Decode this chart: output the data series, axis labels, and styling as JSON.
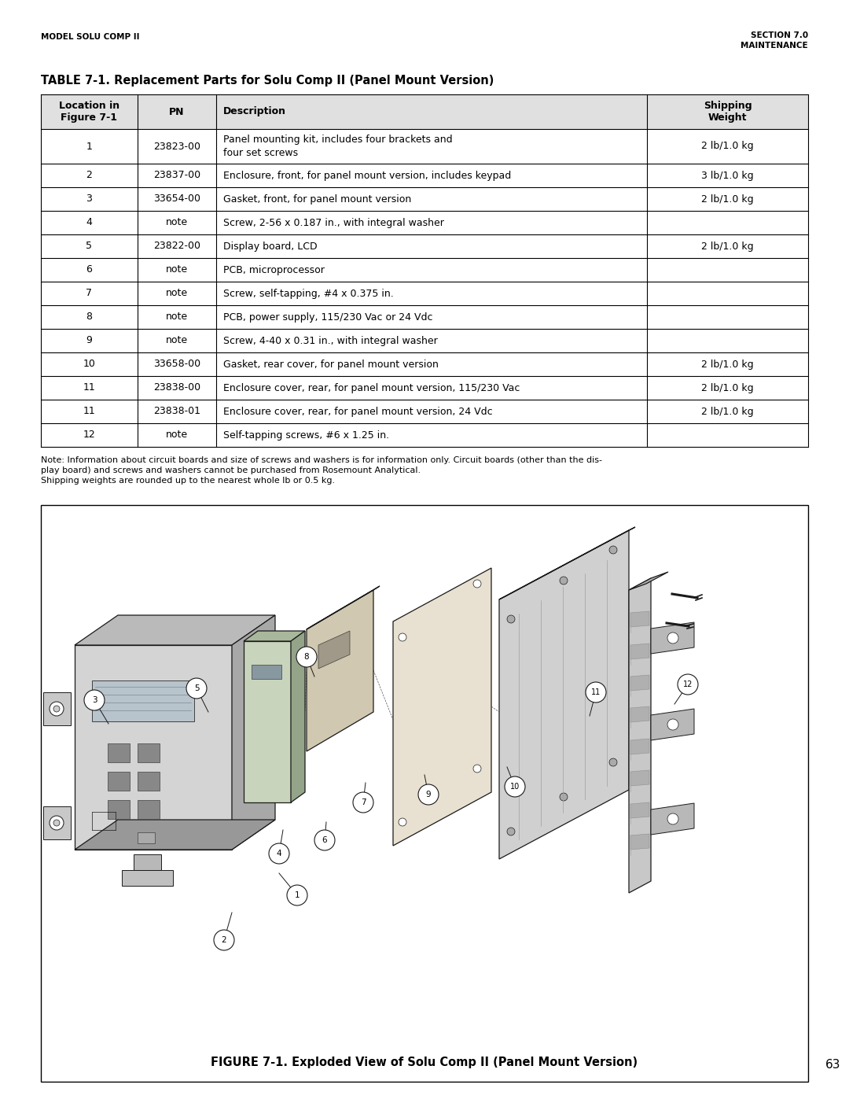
{
  "page_bg": "#ffffff",
  "header_left": "MODEL SOLU COMP II",
  "header_right_line1": "SECTION 7.0",
  "header_right_line2": "MAINTENANCE",
  "table_title": "TABLE 7-1. Replacement Parts for Solu Comp II (Panel Mount Version)",
  "col_headers": [
    "Location in\nFigure 7-1",
    "PN",
    "Description",
    "Shipping\nWeight"
  ],
  "rows": [
    [
      "1",
      "23823-00",
      "Panel mounting kit, includes four brackets and\nfour set screws",
      "2 lb/1.0 kg"
    ],
    [
      "2",
      "23837-00",
      "Enclosure, front, for panel mount version, includes keypad",
      "3 lb/1.0 kg"
    ],
    [
      "3",
      "33654-00",
      "Gasket, front, for panel mount version",
      "2 lb/1.0 kg"
    ],
    [
      "4",
      "note",
      "Screw, 2-56 x 0.187 in., with integral washer",
      ""
    ],
    [
      "5",
      "23822-00",
      "Display board, LCD",
      "2 lb/1.0 kg"
    ],
    [
      "6",
      "note",
      "PCB, microprocessor",
      ""
    ],
    [
      "7",
      "note",
      "Screw, self-tapping, #4 x 0.375 in.",
      ""
    ],
    [
      "8",
      "note",
      "PCB, power supply, 115/230 Vac or 24 Vdc",
      ""
    ],
    [
      "9",
      "note",
      "Screw, 4-40 x 0.31 in., with integral washer",
      ""
    ],
    [
      "10",
      "33658-00",
      "Gasket, rear cover, for panel mount version",
      "2 lb/1.0 kg"
    ],
    [
      "11",
      "23838-00",
      "Enclosure cover, rear, for panel mount version, 115/230 Vac",
      "2 lb/1.0 kg"
    ],
    [
      "11",
      "23838-01",
      "Enclosure cover, rear, for panel mount version, 24 Vdc",
      "2 lb/1.0 kg"
    ],
    [
      "12",
      "note",
      "Self-tapping screws, #6 x 1.25 in.",
      ""
    ]
  ],
  "note_text": "Note: Information about circuit boards and size of screws and washers is for information only. Circuit boards (other than the dis-\nplay board) and screws and washers cannot be purchased from Rosemount Analytical.\nShipping weights are rounded up to the nearest whole lb or 0.5 kg.",
  "figure_caption": "FIGURE 7-1. Exploded View of Solu Comp II (Panel Mount Version)",
  "page_number": "63",
  "text_color": "#000000"
}
